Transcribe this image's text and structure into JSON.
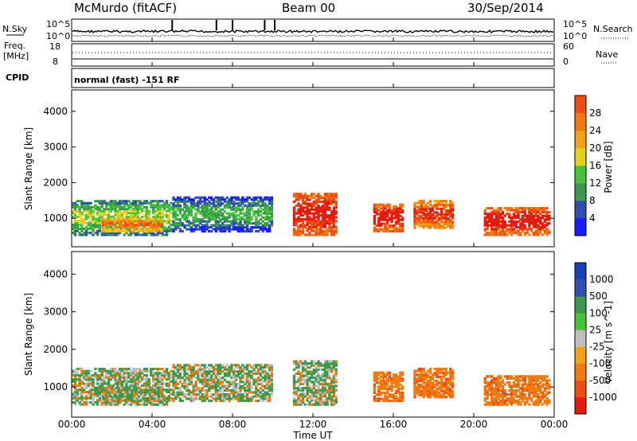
{
  "header": {
    "station": "McMurdo (fitACF)",
    "beam": "Beam 00",
    "date": "30/Sep/2014"
  },
  "top_panels": {
    "nsky_label": "N.Sky",
    "nsearch_label": "N.Search",
    "nsky_ticks": [
      "10^5",
      "10^0"
    ],
    "nsearch_ticks": [
      "10^5",
      "10^0"
    ],
    "freq_label": "Freq.",
    "freq_unit": "[MHz]",
    "freq_ticks": [
      "18",
      "8"
    ],
    "nave_label": "Nave",
    "nave_ticks": [
      "60",
      "0"
    ],
    "cpid_label": "CPID",
    "cpid_text": "normal (fast) -151 RF"
  },
  "colors": {
    "power": [
      "#1a1aff",
      "#2e4fb0",
      "#3b9a4e",
      "#47c33a",
      "#e8cf1f",
      "#f2a21a",
      "#ef7a12",
      "#f04d10",
      "#e31c10"
    ],
    "velocity": [
      "#e31c10",
      "#f04d10",
      "#ef7a12",
      "#f2a21a",
      "#bfbfbf",
      "#47c33a",
      "#3b9a4e",
      "#2e4fb0",
      "#1a3fb5"
    ]
  },
  "chart_data": [
    {
      "type": "heatmap",
      "panel": "power",
      "ylabel": "Slant Range [km]",
      "yticks": [
        "1000",
        "2000",
        "3000",
        "4000"
      ],
      "ylim": [
        200,
        4600
      ],
      "colorbar_label": "Power [dB]",
      "colorbar_ticks": [
        "4",
        "8",
        "12",
        "16",
        "20",
        "24",
        "28"
      ],
      "echo_regions": [
        {
          "t0": 0.0,
          "t1": 5.0,
          "r0": 500,
          "r1": 1500,
          "level": 3
        },
        {
          "t0": 1.5,
          "t1": 4.5,
          "r0": 600,
          "r1": 1000,
          "level": 6
        },
        {
          "t0": 5.0,
          "t1": 10.0,
          "r0": 600,
          "r1": 1600,
          "level": 2
        },
        {
          "t0": 11.0,
          "t1": 13.2,
          "r0": 500,
          "r1": 1700,
          "level": 8
        },
        {
          "t0": 15.0,
          "t1": 16.5,
          "r0": 600,
          "r1": 1400,
          "level": 8
        },
        {
          "t0": 17.0,
          "t1": 19.0,
          "r0": 700,
          "r1": 1500,
          "level": 7
        },
        {
          "t0": 20.5,
          "t1": 23.8,
          "r0": 500,
          "r1": 1300,
          "level": 8
        }
      ]
    },
    {
      "type": "heatmap",
      "panel": "velocity",
      "ylabel": "Slant Range [km]",
      "yticks": [
        "1000",
        "2000",
        "3000",
        "4000"
      ],
      "ylim": [
        200,
        4600
      ],
      "xlabel": "Time UT",
      "xticks": [
        "00:00",
        "04:00",
        "08:00",
        "12:00",
        "16:00",
        "20:00",
        "00:00"
      ],
      "colorbar_label": "Velocity [m s^-1]",
      "colorbar_ticks": [
        "-1000",
        "-500",
        "-100",
        "-25",
        "25",
        "100",
        "500",
        "1000"
      ]
    }
  ]
}
